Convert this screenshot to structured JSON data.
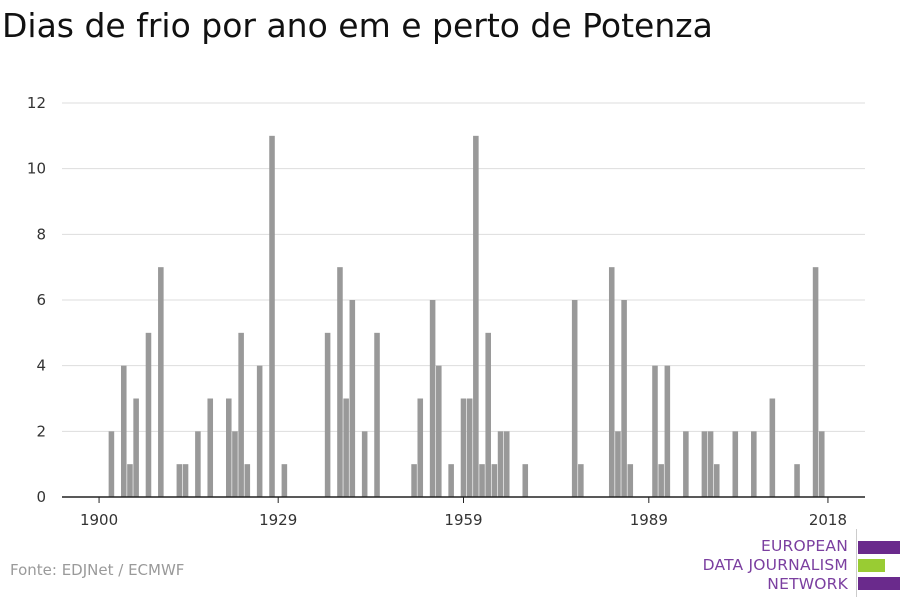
{
  "chart_data": {
    "type": "bar",
    "title": "Dias de frio por ano em e perto de Potenza",
    "xlabel": "",
    "ylabel": "",
    "x_ticks": [
      1900,
      1929,
      1959,
      1989,
      2018
    ],
    "y_ticks": [
      0,
      2,
      4,
      6,
      8,
      10,
      12
    ],
    "ylim": [
      0,
      12
    ],
    "xlim": [
      1894,
      2024
    ],
    "grid": true,
    "legend": "none",
    "bar_color": "#999999",
    "data": [
      {
        "x": 1902,
        "y": 2
      },
      {
        "x": 1904,
        "y": 4
      },
      {
        "x": 1905,
        "y": 1
      },
      {
        "x": 1906,
        "y": 3
      },
      {
        "x": 1908,
        "y": 5
      },
      {
        "x": 1910,
        "y": 7
      },
      {
        "x": 1913,
        "y": 1
      },
      {
        "x": 1914,
        "y": 1
      },
      {
        "x": 1916,
        "y": 2
      },
      {
        "x": 1918,
        "y": 3
      },
      {
        "x": 1921,
        "y": 3
      },
      {
        "x": 1922,
        "y": 2
      },
      {
        "x": 1923,
        "y": 5
      },
      {
        "x": 1924,
        "y": 1
      },
      {
        "x": 1926,
        "y": 4
      },
      {
        "x": 1928,
        "y": 11
      },
      {
        "x": 1930,
        "y": 1
      },
      {
        "x": 1937,
        "y": 5
      },
      {
        "x": 1939,
        "y": 7
      },
      {
        "x": 1940,
        "y": 3
      },
      {
        "x": 1941,
        "y": 6
      },
      {
        "x": 1943,
        "y": 2
      },
      {
        "x": 1945,
        "y": 5
      },
      {
        "x": 1951,
        "y": 1
      },
      {
        "x": 1952,
        "y": 3
      },
      {
        "x": 1954,
        "y": 6
      },
      {
        "x": 1955,
        "y": 4
      },
      {
        "x": 1957,
        "y": 1
      },
      {
        "x": 1959,
        "y": 3
      },
      {
        "x": 1960,
        "y": 3
      },
      {
        "x": 1961,
        "y": 11
      },
      {
        "x": 1962,
        "y": 1
      },
      {
        "x": 1963,
        "y": 5
      },
      {
        "x": 1964,
        "y": 1
      },
      {
        "x": 1965,
        "y": 2
      },
      {
        "x": 1966,
        "y": 2
      },
      {
        "x": 1969,
        "y": 1
      },
      {
        "x": 1977,
        "y": 6
      },
      {
        "x": 1978,
        "y": 1
      },
      {
        "x": 1983,
        "y": 7
      },
      {
        "x": 1984,
        "y": 2
      },
      {
        "x": 1985,
        "y": 6
      },
      {
        "x": 1986,
        "y": 1
      },
      {
        "x": 1990,
        "y": 4
      },
      {
        "x": 1991,
        "y": 1
      },
      {
        "x": 1992,
        "y": 4
      },
      {
        "x": 1995,
        "y": 2
      },
      {
        "x": 1998,
        "y": 2
      },
      {
        "x": 1999,
        "y": 2
      },
      {
        "x": 2000,
        "y": 1
      },
      {
        "x": 2003,
        "y": 2
      },
      {
        "x": 2006,
        "y": 2
      },
      {
        "x": 2009,
        "y": 3
      },
      {
        "x": 2013,
        "y": 1
      },
      {
        "x": 2016,
        "y": 7
      },
      {
        "x": 2017,
        "y": 2
      }
    ]
  },
  "source": "Fonte: EDJNet / ECMWF",
  "logo": {
    "line1": "EUROPEAN",
    "line2": "DATA JOURNALISM",
    "line3": "NETWORK"
  }
}
